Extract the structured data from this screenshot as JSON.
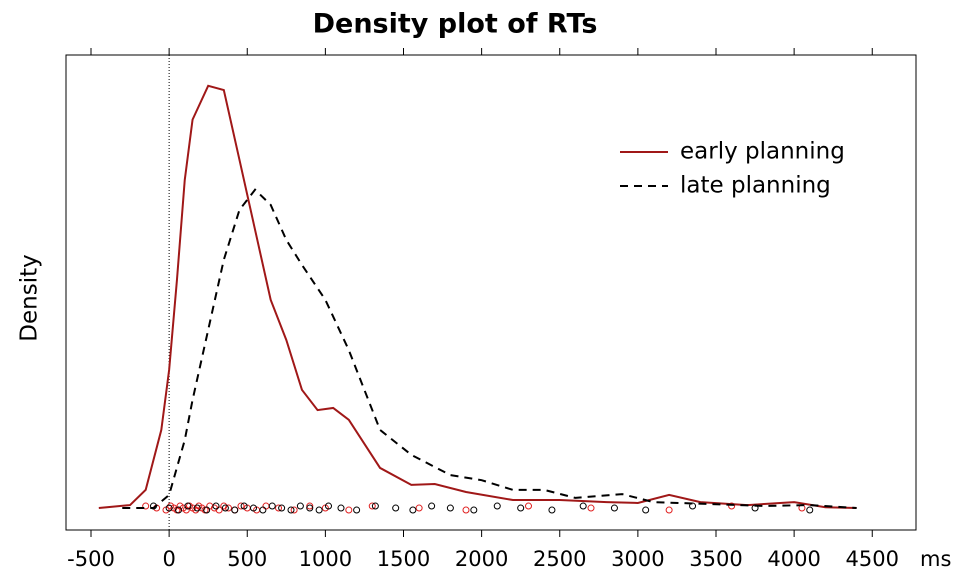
{
  "chart_data": {
    "type": "line",
    "title": "Density plot of RTs",
    "x_label": "ms",
    "y_label": "Density",
    "xlim": [
      -660,
      4780
    ],
    "ylim": [
      -5.2,
      107.3
    ],
    "xticks": [
      -500,
      0,
      500,
      1000,
      1500,
      2000,
      2500,
      3000,
      3500,
      4000,
      4500
    ],
    "vline": 0,
    "legend": "upper right",
    "series": [
      {
        "name": "early planning",
        "color": "#a01818",
        "dash": false,
        "x": [
          -450,
          -250,
          -150,
          -50,
          0,
          50,
          100,
          150,
          250,
          350,
          450,
          550,
          650,
          750,
          850,
          950,
          1050,
          1150,
          1350,
          1550,
          1700,
          1900,
          2200,
          2500,
          2800,
          3000,
          3200,
          3400,
          3700,
          4000,
          4200,
          4400
        ],
        "values": [
          0,
          0.7,
          4.3,
          18.5,
          32.7,
          54,
          77.7,
          92,
          100,
          99,
          82.5,
          65.9,
          49.3,
          39.8,
          28,
          23.2,
          23.7,
          20.9,
          9.5,
          5.5,
          5.7,
          3.8,
          1.9,
          1.9,
          1.4,
          1.2,
          3.1,
          1.4,
          0.7,
          1.4,
          0.2,
          0
        ],
        "rug_color": "#e02020",
        "rug_x": [
          -150,
          -80,
          -20,
          10,
          30,
          50,
          70,
          90,
          110,
          130,
          150,
          170,
          190,
          210,
          230,
          260,
          290,
          320,
          350,
          380,
          420,
          460,
          500,
          560,
          620,
          700,
          800,
          900,
          1000,
          1150,
          1300,
          1600,
          1900,
          2300,
          2700,
          3200,
          3600,
          4050
        ]
      },
      {
        "name": "late planning",
        "color": "#000000",
        "dash": true,
        "x": [
          -300,
          -100,
          0,
          100,
          150,
          250,
          350,
          450,
          550,
          650,
          750,
          850,
          1000,
          1150,
          1350,
          1550,
          1800,
          2000,
          2200,
          2400,
          2600,
          2900,
          3100,
          3500,
          3800,
          4100,
          4400
        ],
        "values": [
          0,
          0,
          3.1,
          16.1,
          25.6,
          42.2,
          58.8,
          70.6,
          75.4,
          71.8,
          63.5,
          57.6,
          49.3,
          37.4,
          18.5,
          12.6,
          7.8,
          6.6,
          4.3,
          4.3,
          2.4,
          3.3,
          1.4,
          0.9,
          0.5,
          0.7,
          0
        ],
        "rug_color": "#000000",
        "rug_x": [
          -100,
          0,
          60,
          120,
          180,
          240,
          300,
          360,
          420,
          480,
          540,
          600,
          660,
          720,
          780,
          840,
          900,
          960,
          1020,
          1100,
          1200,
          1320,
          1450,
          1560,
          1680,
          1800,
          1950,
          2100,
          2250,
          2450,
          2650,
          2850,
          3050,
          3350,
          3750,
          4100
        ]
      }
    ]
  }
}
